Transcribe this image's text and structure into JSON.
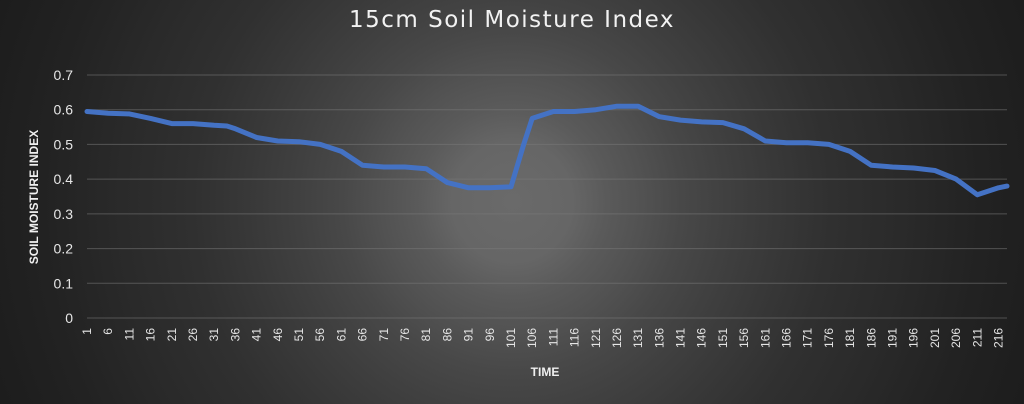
{
  "chart_data": {
    "type": "line",
    "title": "15cm Soil Moisture Index",
    "xlabel": "TIME",
    "ylabel": "SOIL MOISTURE INDEX",
    "ylim": [
      0,
      0.7
    ],
    "y_ticks": [
      "0",
      "0.1",
      "0.2",
      "0.3",
      "0.4",
      "0.5",
      "0.6",
      "0.7"
    ],
    "x_ticks": [
      "1",
      "6",
      "11",
      "16",
      "21",
      "26",
      "31",
      "36",
      "41",
      "46",
      "51",
      "56",
      "61",
      "66",
      "71",
      "76",
      "81",
      "86",
      "91",
      "96",
      "101",
      "106",
      "111",
      "116",
      "121",
      "126",
      "131",
      "136",
      "141",
      "146",
      "151",
      "156",
      "161",
      "166",
      "171",
      "176",
      "181",
      "186",
      "191",
      "196",
      "201",
      "206",
      "211",
      "216"
    ],
    "x_range": [
      1,
      218
    ],
    "grid": true,
    "color": "#4472c4",
    "series": [
      {
        "points": [
          [
            1,
            0.595
          ],
          [
            6,
            0.59
          ],
          [
            11,
            0.588
          ],
          [
            16,
            0.575
          ],
          [
            21,
            0.56
          ],
          [
            26,
            0.56
          ],
          [
            31,
            0.555
          ],
          [
            34,
            0.553
          ],
          [
            36,
            0.545
          ],
          [
            41,
            0.52
          ],
          [
            46,
            0.51
          ],
          [
            51,
            0.508
          ],
          [
            56,
            0.5
          ],
          [
            61,
            0.48
          ],
          [
            66,
            0.44
          ],
          [
            71,
            0.435
          ],
          [
            76,
            0.435
          ],
          [
            81,
            0.43
          ],
          [
            86,
            0.39
          ],
          [
            91,
            0.375
          ],
          [
            96,
            0.375
          ],
          [
            101,
            0.378
          ],
          [
            104,
            0.5
          ],
          [
            106,
            0.575
          ],
          [
            111,
            0.595
          ],
          [
            116,
            0.595
          ],
          [
            121,
            0.6
          ],
          [
            126,
            0.61
          ],
          [
            131,
            0.61
          ],
          [
            136,
            0.58
          ],
          [
            141,
            0.57
          ],
          [
            146,
            0.565
          ],
          [
            151,
            0.563
          ],
          [
            156,
            0.545
          ],
          [
            161,
            0.51
          ],
          [
            166,
            0.505
          ],
          [
            171,
            0.505
          ],
          [
            176,
            0.5
          ],
          [
            181,
            0.48
          ],
          [
            186,
            0.44
          ],
          [
            191,
            0.435
          ],
          [
            196,
            0.432
          ],
          [
            201,
            0.425
          ],
          [
            206,
            0.4
          ],
          [
            211,
            0.355
          ],
          [
            216,
            0.375
          ],
          [
            218,
            0.38
          ]
        ]
      }
    ]
  }
}
